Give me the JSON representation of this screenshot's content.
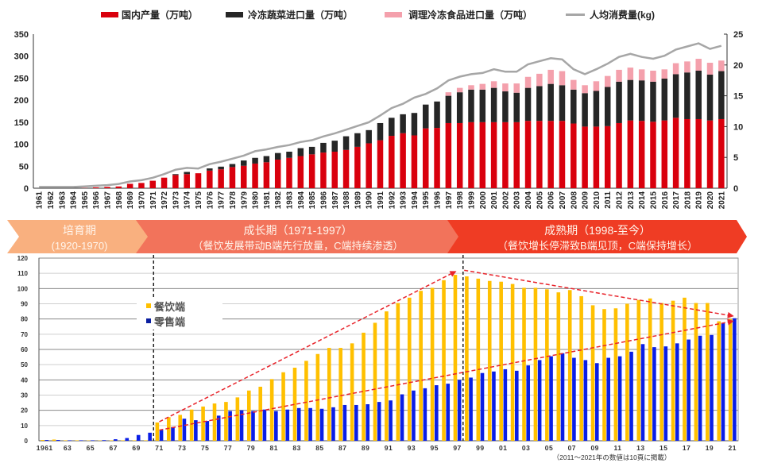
{
  "chart_data": [
    {
      "type": "bar",
      "stacked": true,
      "title": "",
      "legend": [
        "国内产量（万吨）",
        "冷冻蔬菜进口量（万吨）",
        "调理冷冻食品进口量（万吨）",
        "人均消费量(kg)"
      ],
      "legend_position": "top",
      "colors": {
        "domestic": "#d9000d",
        "frozen_veg": "#262626",
        "prepared": "#f4a0ac",
        "per_capita": "#a6a6a6"
      },
      "ylim_left": [
        0,
        350
      ],
      "yticks_left": [
        "0",
        "50",
        "100",
        "150",
        "200",
        "250",
        "300",
        "350"
      ],
      "ylim_right": [
        0,
        25
      ],
      "yticks_right": [
        "0",
        "5",
        "10",
        "15",
        "20",
        "25"
      ],
      "x": [
        "1961",
        "1962",
        "1963",
        "1964",
        "1965",
        "1966",
        "1967",
        "1968",
        "1969",
        "1970",
        "1971",
        "1972",
        "1973",
        "1974",
        "1975",
        "1976",
        "1977",
        "1978",
        "1979",
        "1980",
        "1981",
        "1982",
        "1983",
        "1984",
        "1985",
        "1986",
        "1987",
        "1988",
        "1989",
        "1990",
        "1991",
        "1992",
        "1993",
        "1994",
        "1995",
        "1996",
        "1997",
        "1998",
        "1999",
        "2000",
        "2001",
        "2002",
        "2003",
        "2004",
        "2005",
        "2006",
        "2007",
        "2008",
        "2009",
        "2010",
        "2011",
        "2012",
        "2013",
        "2014",
        "2015",
        "2016",
        "2017",
        "2018",
        "2019",
        "2020",
        "2021"
      ],
      "series": [
        {
          "name": "国内产量（万吨）",
          "key": "domestic",
          "axis": "left",
          "kind": "bar",
          "values": [
            0,
            0,
            0,
            0,
            0.5,
            2,
            3,
            4,
            10,
            12,
            17,
            24,
            30,
            32,
            34,
            40,
            43,
            48,
            51,
            56,
            59,
            65,
            69,
            73,
            77,
            81,
            83,
            87,
            94,
            102,
            109,
            119,
            125,
            120,
            136,
            137,
            148,
            148,
            150,
            150,
            150,
            150,
            150,
            153,
            153,
            153,
            153,
            147,
            140,
            140,
            141,
            148,
            154,
            153,
            151,
            154,
            160,
            157,
            157,
            154,
            157
          ]
        },
        {
          "name": "冷冻蔬菜进口量（万吨）",
          "key": "frozen_veg",
          "axis": "left",
          "kind": "bar",
          "values": [
            0,
            0,
            0,
            0,
            0,
            0,
            0,
            0,
            0,
            0,
            0,
            0,
            2,
            5,
            0,
            5,
            6,
            7,
            12,
            13,
            14,
            15,
            14,
            18,
            17,
            22,
            25,
            31,
            31,
            30,
            39,
            41,
            43,
            51,
            54,
            60,
            62,
            70,
            74,
            74,
            78,
            70,
            67,
            75,
            79,
            84,
            81,
            77,
            76,
            81,
            89,
            94,
            92,
            92,
            91,
            95,
            99,
            106,
            110,
            104,
            109
          ]
        },
        {
          "name": "调理冷冻食品进口量（万吨）",
          "key": "prepared",
          "axis": "left",
          "kind": "bar",
          "values": [
            0,
            0,
            0,
            0,
            0,
            0,
            0,
            0,
            0,
            0,
            0,
            0,
            0,
            0,
            0,
            0,
            0,
            0,
            0,
            0,
            0,
            0,
            0,
            0,
            0,
            0,
            0,
            0,
            0,
            0,
            0,
            0,
            0,
            0,
            0,
            0,
            8,
            10,
            10,
            13,
            15,
            18,
            21,
            25,
            28,
            32,
            32,
            22,
            18,
            22,
            25,
            27,
            28,
            25,
            25,
            21,
            25,
            25,
            27,
            27,
            24
          ]
        },
        {
          "name": "人均消费量(kg)",
          "key": "per_capita",
          "axis": "right",
          "kind": "line",
          "values": [
            0.2,
            0.2,
            0.2,
            0.2,
            0.3,
            0.4,
            0.5,
            0.7,
            1.1,
            1.3,
            1.7,
            2.3,
            3.0,
            3.3,
            3.2,
            3.9,
            4.3,
            4.8,
            5.3,
            6.0,
            6.3,
            6.7,
            7.0,
            7.5,
            7.8,
            8.4,
            8.9,
            9.5,
            10.1,
            10.7,
            11.8,
            13.0,
            13.7,
            14.7,
            15.3,
            16.2,
            17.5,
            18.1,
            18.5,
            18.7,
            19.3,
            18.9,
            18.9,
            20.1,
            20.6,
            21.1,
            20.9,
            19.3,
            18.5,
            19.3,
            20.2,
            21.3,
            21.8,
            21.3,
            21.0,
            21.5,
            22.5,
            23.0,
            23.5,
            22.6,
            23.1
          ]
        }
      ]
    },
    {
      "type": "bar",
      "title": "",
      "legend": [
        "餐饮端",
        "零售端"
      ],
      "legend_position": "upper-left",
      "colors": {
        "restaurant": "#ffc000",
        "retail": "#0a1ee6",
        "trend": "#e8232a"
      },
      "ylim": [
        0,
        120
      ],
      "yticks": [
        "0",
        "10",
        "20",
        "30",
        "40",
        "50",
        "60",
        "70",
        "80",
        "90",
        "100",
        "110",
        "120"
      ],
      "grid": true,
      "x": [
        "1961",
        "1962",
        "1963",
        "1964",
        "1965",
        "1966",
        "1967",
        "1968",
        "1969",
        "1970",
        "1971",
        "1972",
        "1973",
        "1974",
        "1975",
        "1976",
        "1977",
        "1978",
        "1979",
        "1980",
        "1981",
        "1982",
        "1983",
        "1984",
        "1985",
        "1986",
        "1987",
        "1988",
        "1989",
        "1990",
        "1991",
        "1992",
        "1993",
        "1994",
        "1995",
        "1996",
        "1997",
        "1998",
        "1999",
        "2000",
        "2001",
        "2002",
        "2003",
        "2004",
        "2005",
        "2006",
        "2007",
        "2008",
        "2009",
        "2010",
        "2011",
        "2012",
        "2013",
        "2014",
        "2015",
        "2016",
        "2017",
        "2018",
        "2019",
        "2020",
        "2021"
      ],
      "xtick_labels": [
        "1961",
        "63",
        "65",
        "67",
        "69",
        "71",
        "73",
        "75",
        "77",
        "79",
        "81",
        "83",
        "85",
        "87",
        "89",
        "91",
        "93",
        "95",
        "97",
        "99",
        "01",
        "03",
        "05",
        "07",
        "09",
        "11",
        "13",
        "15",
        "17",
        "19",
        "21"
      ],
      "series": [
        {
          "name": "餐饮端",
          "key": "restaurant",
          "values": [
            0.5,
            0.8,
            0.3,
            0.3,
            0.2,
            0.2,
            0.3,
            0.3,
            0.3,
            0.3,
            12,
            15.5,
            17,
            20.5,
            22.5,
            24.5,
            25.5,
            28.5,
            33,
            35.5,
            40.5,
            45,
            48,
            52.5,
            57,
            61,
            61,
            64,
            71,
            77.5,
            85,
            90.5,
            94,
            98.5,
            100.5,
            105.5,
            109,
            108,
            106.5,
            105,
            104.5,
            103,
            100.5,
            100.5,
            99.5,
            97.5,
            99,
            95,
            89,
            86.5,
            87,
            90,
            92.5,
            93.5,
            90.5,
            92,
            94,
            90.5,
            90.5,
            78.5,
            80
          ]
        },
        {
          "name": "零售端",
          "key": "retail",
          "values": [
            0.5,
            0.5,
            0.3,
            0.3,
            0.3,
            0.4,
            1,
            1.8,
            3.8,
            5.3,
            7,
            9,
            14.5,
            13.5,
            13,
            16.5,
            19.5,
            20,
            19.5,
            20.5,
            19.5,
            20.5,
            21.5,
            21.5,
            21,
            22,
            23.5,
            23.5,
            24,
            25.5,
            26.5,
            30.5,
            33,
            34.5,
            36.5,
            37.5,
            40,
            41.5,
            44.5,
            45.5,
            47,
            46,
            49.5,
            53,
            55.5,
            57.5,
            54.5,
            53,
            51,
            54.5,
            55.5,
            58.5,
            63.5,
            61.5,
            62,
            64,
            66.5,
            69,
            69.5,
            77.5,
            80.5
          ]
        }
      ],
      "trend_lines": [
        {
          "from": [
            1971,
            12.5
          ],
          "to": [
            1996.8,
            111
          ]
        },
        {
          "from": [
            1997.6,
            112
          ],
          "to": [
            2021,
            82
          ]
        },
        {
          "from": [
            1971,
            7
          ],
          "to": [
            2021,
            78.5
          ]
        }
      ],
      "dividers": [
        1970.5,
        1997.5
      ],
      "footnote": "（2011～2021年の数値は10頁に掲載）"
    }
  ],
  "phases": [
    {
      "title": "培育期",
      "subtitle": "(1920-1970)",
      "color": "#f9b07f"
    },
    {
      "title": "成长期（1971-1997）",
      "subtitle": "（餐饮发展带动B端先行放量，C端持续渗透）",
      "color": "#f2735b"
    },
    {
      "title": "成熟期（1998-至今）",
      "subtitle": "（餐饮增长停滞致B端见顶，C端保持增长）",
      "color": "#ef3c24"
    }
  ]
}
